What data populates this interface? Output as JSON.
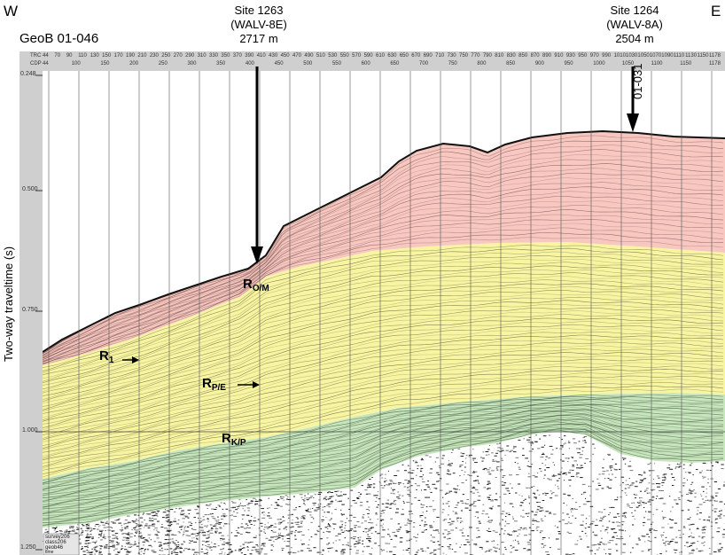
{
  "header": {
    "west": "W",
    "east": "E",
    "line_name": "GeoB 01-046"
  },
  "sites": [
    {
      "name": "Site 1263",
      "hole": "(WALV-8E)",
      "depth": "2717 m"
    },
    {
      "name": "Site 1264",
      "hole": "(WALV-8A)",
      "depth": "2504 m"
    }
  ],
  "crossing_line": "01-031",
  "y_axis": {
    "label": "Two-way traveltime (s)",
    "ticks": [
      "0.248",
      "0.500",
      "0.750",
      "1.000",
      "1.250"
    ]
  },
  "trace_axis": {
    "trc_label": "TRC",
    "cdp_label": "CDP",
    "trc_values": [
      "44",
      "70",
      "90",
      "110",
      "130",
      "150",
      "170",
      "190",
      "210",
      "230",
      "250",
      "270",
      "290",
      "310",
      "330",
      "350",
      "370",
      "390",
      "410",
      "430",
      "450",
      "470",
      "490",
      "510",
      "530",
      "550",
      "570",
      "590",
      "610",
      "630",
      "650",
      "670",
      "690",
      "710",
      "730",
      "750",
      "770",
      "790",
      "810",
      "830",
      "850",
      "870",
      "890",
      "910",
      "930",
      "950",
      "970",
      "990",
      "1010",
      "1030",
      "1050",
      "1070",
      "1090",
      "1110",
      "1130",
      "1150",
      "1178"
    ],
    "cdp_values": [
      "44",
      "100",
      "150",
      "200",
      "250",
      "300",
      "350",
      "400",
      "450",
      "500",
      "550",
      "600",
      "650",
      "700",
      "750",
      "800",
      "850",
      "900",
      "950",
      "1000",
      "1050",
      "1100",
      "1150",
      "1178"
    ]
  },
  "reflectors": [
    {
      "main": "R",
      "sub": "O/M",
      "arrow": false
    },
    {
      "main": "R",
      "sub": "1",
      "arrow": true
    },
    {
      "main": "R",
      "sub": "P/E",
      "arrow": true
    },
    {
      "main": "R",
      "sub": "K/P",
      "arrow": false
    }
  ],
  "info_box": [
    "survey206",
    "class206",
    "geob46",
    "time"
  ],
  "colors": {
    "upper_unit": "#f7c7c0",
    "middle_unit": "#f8f5a2",
    "lower_unit": "#c7e6bd",
    "axis_bar": "#cfcfcf"
  }
}
